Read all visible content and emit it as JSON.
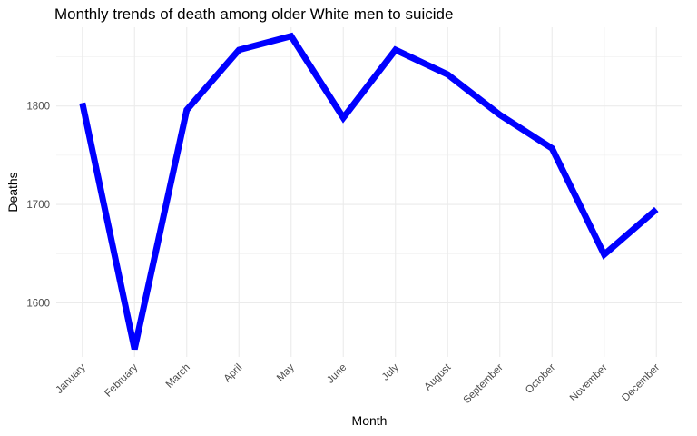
{
  "chart_data": {
    "type": "line",
    "title": "Monthly trends of death among older White men to suicide",
    "xlabel": "Month",
    "ylabel": "Deaths",
    "categories": [
      "January",
      "February",
      "March",
      "April",
      "May",
      "June",
      "July",
      "August",
      "September",
      "October",
      "November",
      "December"
    ],
    "series": [
      {
        "values": [
          1803,
          1553,
          1796,
          1857,
          1871,
          1788,
          1857,
          1832,
          1791,
          1757,
          1649,
          1695
        ]
      }
    ],
    "yticks": [
      1600,
      1700,
      1800
    ],
    "ylim": [
      1545,
      1880
    ],
    "grid": true,
    "line_color": "#0000ff",
    "grid_color": "#ebebeb"
  }
}
